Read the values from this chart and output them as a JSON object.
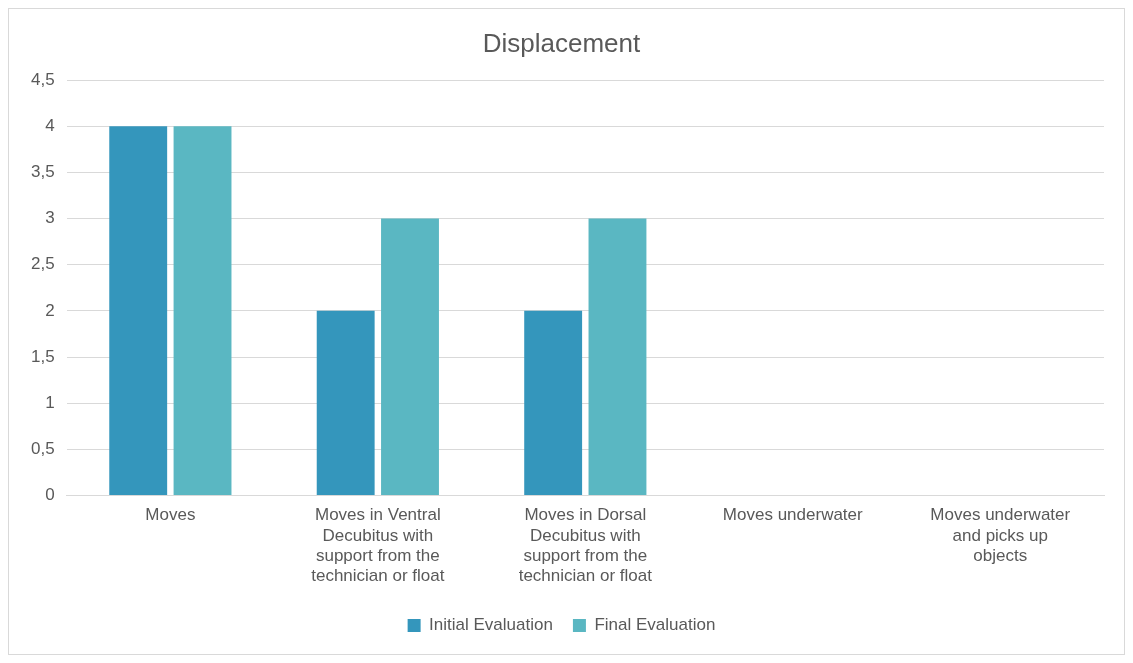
{
  "chart_data": {
    "type": "bar",
    "title": "Displacement",
    "categories": [
      "Moves",
      "Moves in Ventral Decubitus with support from the technician or float",
      "Moves in Dorsal Decubitus with support from the technician or float",
      "Moves underwater",
      "Moves underwater and picks up objects"
    ],
    "series": [
      {
        "name": "Initial Evaluation",
        "color": "#3496bc",
        "values": [
          4,
          2,
          2,
          0,
          0
        ]
      },
      {
        "name": "Final Evaluation",
        "color": "#5ab7c2",
        "values": [
          4,
          3,
          3,
          0,
          0
        ]
      }
    ],
    "ylim": [
      0,
      4.5
    ],
    "yticks": [
      0,
      {
        "value": 0.5,
        "label": "0,5"
      },
      1,
      {
        "value": 1.5,
        "label": "1,5"
      },
      2,
      {
        "value": 2.5,
        "label": "2,5"
      },
      3,
      {
        "value": 3.5,
        "label": "3,5"
      },
      4,
      {
        "value": 4.5,
        "label": "4,5"
      }
    ],
    "grid": "y",
    "legend": "bottom"
  }
}
